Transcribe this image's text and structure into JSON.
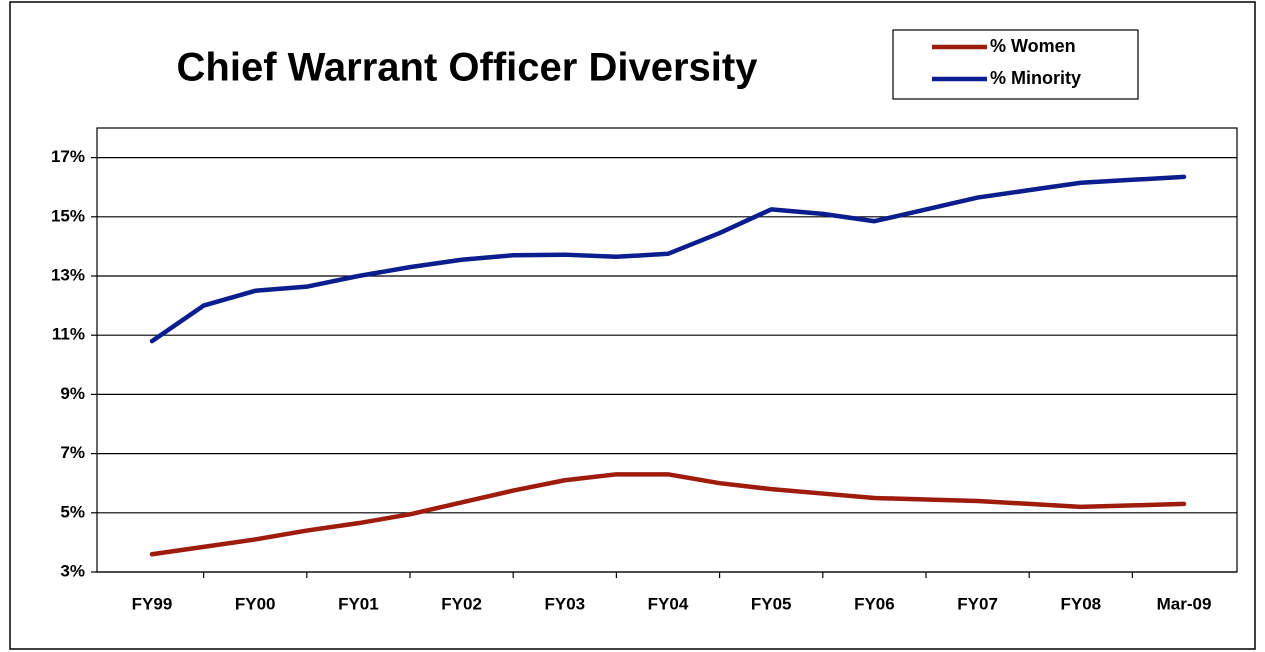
{
  "chart_data": {
    "type": "line",
    "title": "Chief Warrant Officer Diversity",
    "categories": [
      "FY99",
      null,
      "FY00",
      null,
      "FY01",
      null,
      "FY02",
      null,
      "FY03",
      null,
      "FY04",
      null,
      "FY05",
      null,
      "FY06",
      null,
      "FY07",
      null,
      "FY08",
      null,
      "Mar-09"
    ],
    "series": [
      {
        "name": "% Women",
        "color": "#9e1c0c",
        "values": [
          3.6,
          3.85,
          4.1,
          4.4,
          4.65,
          4.95,
          5.35,
          5.75,
          6.1,
          6.3,
          6.3,
          6.0,
          5.8,
          5.65,
          5.5,
          5.45,
          5.4,
          5.3,
          5.2,
          5.25,
          5.3
        ]
      },
      {
        "name": "% Minority",
        "color": "#0c1e8e",
        "values": [
          10.8,
          12.0,
          12.5,
          12.64,
          13.0,
          13.3,
          13.55,
          13.7,
          13.72,
          13.65,
          13.75,
          14.45,
          15.25,
          15.1,
          14.85,
          15.25,
          15.65,
          15.9,
          16.15,
          16.25,
          16.35
        ]
      }
    ],
    "ylim": [
      3,
      18
    ],
    "yticks": [
      {
        "value": 3,
        "label": "3%"
      },
      {
        "value": 5,
        "label": "5%"
      },
      {
        "value": 7,
        "label": "7%"
      },
      {
        "value": 9,
        "label": "9%"
      },
      {
        "value": 11,
        "label": "11%"
      },
      {
        "value": 13,
        "label": "13%"
      },
      {
        "value": 15,
        "label": "15%"
      },
      {
        "value": 17,
        "label": "17%"
      }
    ],
    "grid": true,
    "legend": "top-right"
  }
}
